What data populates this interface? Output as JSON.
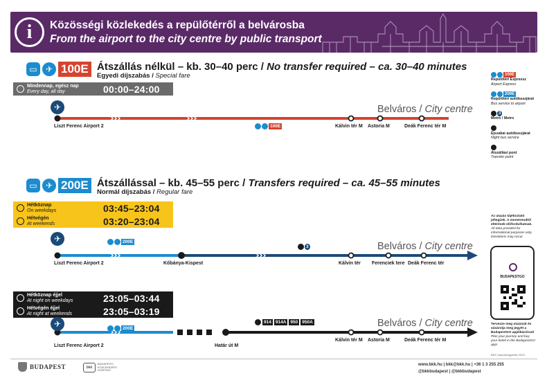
{
  "header": {
    "title_hu": "Közösségi közlekedés a repülőtérről a belvárosba",
    "title_en": "From the airport to the city centre by public transport",
    "info_glyph": "i"
  },
  "route_100e": {
    "badge": "100E",
    "title_hu": "Átszállás nélkül – kb. 30–40 perc",
    "title_en": "No transfer required – ca. 30–40 minutes",
    "fare_hu": "Egyedi díjszabás",
    "fare_en": "Special fare",
    "time_label_hu": "Mindennap, egész nap",
    "time_label_en": "Every day, all day",
    "time": "00:00–24:00",
    "stops": [
      "Liszt Ferenc Airport 2",
      "Kálvin tér M",
      "Astoria M",
      "Deák Ferenc tér M"
    ],
    "city": "Belváros",
    "city_en": "City centre",
    "mini_badge": "100E"
  },
  "route_200e": {
    "badge": "200E",
    "title_hu": "Átszállással – kb. 45–55 perc",
    "title_en": "Transfers required – ca. 45–55 minutes",
    "fare_hu": "Normál díjszabás",
    "fare_en": "Regular fare",
    "day_times": [
      {
        "hu": "Hétköznap",
        "en": "On weekdays",
        "time": "03:45–23:04"
      },
      {
        "hu": "Hétvégén",
        "en": "At weekends",
        "time": "03:20–23:04"
      }
    ],
    "day_stops": [
      "Liszt Ferenc Airport 2",
      "Kőbánya-Kispest",
      "Kálvin tér",
      "Ferenciek tere",
      "Deák Ferenc tér"
    ],
    "day_badge": "200E",
    "metro_badge": "3",
    "night_times": [
      {
        "hu": "Hétköznap éjjel",
        "en": "At night on weekdays",
        "time": "23:05–03:44"
      },
      {
        "hu": "Hétvégén éjjel",
        "en": "At night at weekends",
        "time": "23:05–03:19"
      }
    ],
    "night_stops": [
      "Liszt Ferenc Airport 2",
      "Határ út M",
      "Kálvin tér M",
      "Astoria M",
      "Deák Ferenc tér M"
    ],
    "night_badge": "200E",
    "night_buses": [
      "914",
      "914A",
      "950",
      "950A"
    ],
    "city": "Belváros",
    "city_en": "City centre"
  },
  "legend": [
    {
      "badge": "100E",
      "hu": "Repülőtéri Expressz",
      "en": "Airport Express",
      "color": "#d5442f"
    },
    {
      "badge": "200E",
      "hu": "Repülőtéri autóbuszjárat",
      "en": "Bus service to airport",
      "color": "#1b8ccf"
    },
    {
      "badge": "3",
      "hu": "Metró / Metro",
      "en": "",
      "color": "#1b4a7a"
    },
    {
      "badge": "",
      "hu": "Éjszakai autóbuszjárat",
      "en": "Night bus service",
      "color": "#1a1a1a"
    },
    {
      "badge": "",
      "hu": "Átszállási pont",
      "en": "Transfer point",
      "color": "#1a1a1a"
    }
  ],
  "side_note": {
    "hu": "Az utazás tájékoztató jellegűek. A menetrendtől eltérések előfordulhatnak.",
    "en": "All data provided for informational purposes only. Deviations may occur."
  },
  "phone": {
    "name": "BUDAPESTGO"
  },
  "app_note": {
    "hu": "Tervezze meg utazását és vásárolja meg jegyét a BudapestGO applikációval!",
    "en": "Plan your journey and buy your ticket in the BudapestGO app!"
  },
  "rights": "BKK Utazói&Ügyfelek 2023.",
  "footer": {
    "budapest": "BUDAPEST",
    "bkk_text": "BUDAPESTI KÖZLEKEDÉSI KÖZPONT",
    "bkk_logo": "bkk",
    "contact_line1": "www.bkk.hu | bkk@bkk.hu | +36 1 3 255 255",
    "contact_line2": "@bkkbudapest | @bkkbudapest"
  },
  "colors": {
    "purple": "#5a2a67",
    "red": "#d5442f",
    "blue": "#1b8ccf",
    "dark_blue": "#1b4a7a",
    "yellow": "#f7c41b",
    "black": "#1a1a1a",
    "grey": "#6b6b6b"
  },
  "icons": [
    "info-icon",
    "bus-icon",
    "plane-icon",
    "clock-icon",
    "sun-icon",
    "moon-icon",
    "metro-icon",
    "transfer-icon"
  ]
}
